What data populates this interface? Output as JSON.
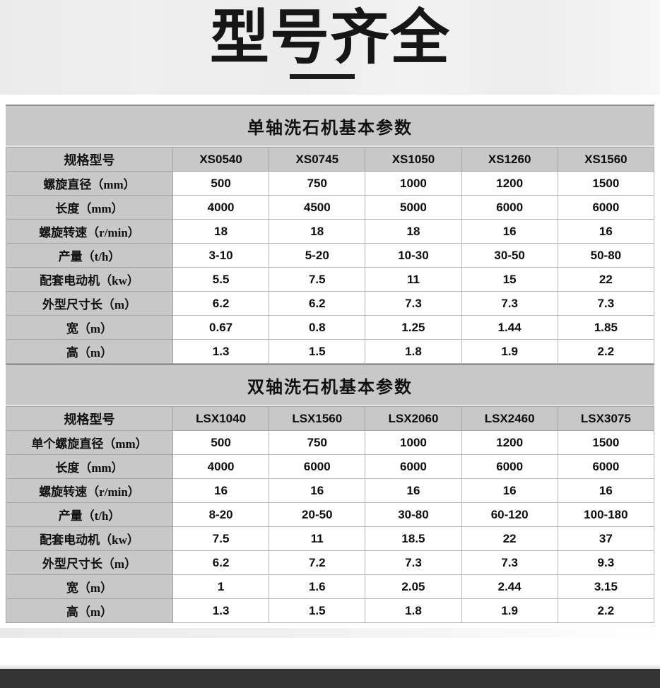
{
  "banner": {
    "title": "型号齐全"
  },
  "tables": [
    {
      "title": "单轴洗石机基本参数",
      "header": [
        "规格型号",
        "XS0540",
        "XS0745",
        "XS1050",
        "XS1260",
        "XS1560"
      ],
      "rows": [
        [
          "螺旋直径（mm）",
          "500",
          "750",
          "1000",
          "1200",
          "1500"
        ],
        [
          "长度（mm）",
          "4000",
          "4500",
          "5000",
          "6000",
          "6000"
        ],
        [
          "螺旋转速（r/min）",
          "18",
          "18",
          "18",
          "16",
          "16"
        ],
        [
          "产量（t/h）",
          "3-10",
          "5-20",
          "10-30",
          "30-50",
          "50-80"
        ],
        [
          "配套电动机（kw）",
          "5.5",
          "7.5",
          "11",
          "15",
          "22"
        ],
        [
          "外型尺寸长（m）",
          "6.2",
          "6.2",
          "7.3",
          "7.3",
          "7.3"
        ],
        [
          "宽（m）",
          "0.67",
          "0.8",
          "1.25",
          "1.44",
          "1.85"
        ],
        [
          "高（m）",
          "1.3",
          "1.5",
          "1.8",
          "1.9",
          "2.2"
        ]
      ]
    },
    {
      "title": "双轴洗石机基本参数",
      "header": [
        "规格型号",
        "LSX1040",
        "LSX1560",
        "LSX2060",
        "LSX2460",
        "LSX3075"
      ],
      "rows": [
        [
          "单个螺旋直径（mm）",
          "500",
          "750",
          "1000",
          "1200",
          "1500"
        ],
        [
          "长度（mm）",
          "4000",
          "6000",
          "6000",
          "6000",
          "6000"
        ],
        [
          "螺旋转速（r/min）",
          "16",
          "16",
          "16",
          "16",
          "16"
        ],
        [
          "产量（t/h）",
          "8-20",
          "20-50",
          "30-80",
          "60-120",
          "100-180"
        ],
        [
          "配套电动机（kw）",
          "7.5",
          "11",
          "18.5",
          "22",
          "37"
        ],
        [
          "外型尺寸长（m）",
          "6.2",
          "7.2",
          "7.3",
          "7.3",
          "9.3"
        ],
        [
          "宽（m）",
          "1",
          "1.6",
          "2.05",
          "2.44",
          "3.15"
        ],
        [
          "高（m）",
          "1.3",
          "1.5",
          "1.8",
          "1.9",
          "2.2"
        ]
      ]
    }
  ],
  "colors": {
    "band_gray": "#c8c8c8",
    "footer_dark": "#333333",
    "title_black": "#161616"
  }
}
